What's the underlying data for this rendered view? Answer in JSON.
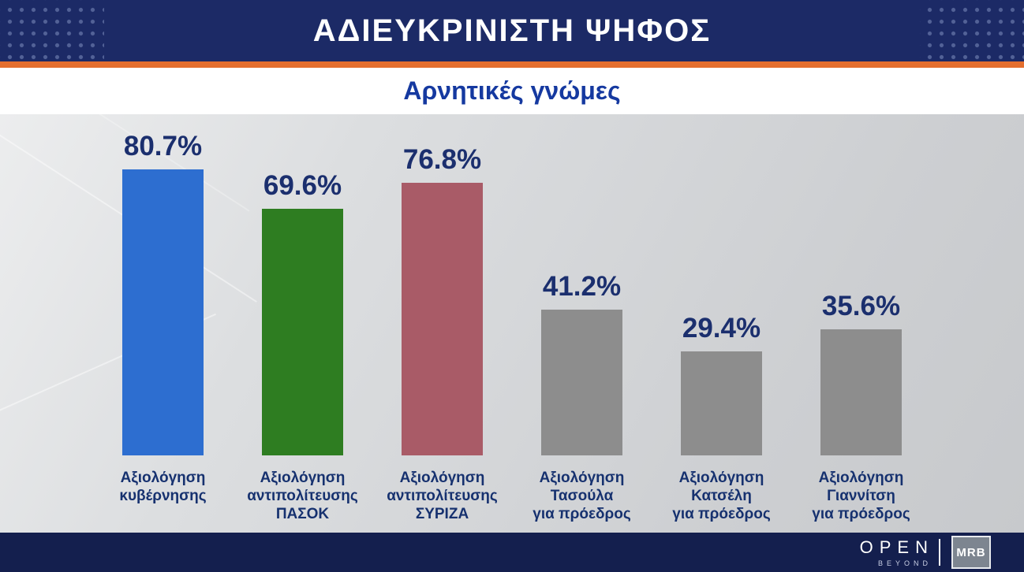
{
  "header": {
    "title": "ΑΔΙΕΥΚΡΙΝΙΣΤΗ ΨΗΦΟΣ"
  },
  "subtitle": "Αρνητικές γνώμες",
  "chart_data": {
    "type": "bar",
    "title": "ΑΔΙΕΥΚΡΙΝΙΣΤΗ ΨΗΦΟΣ",
    "subtitle": "Αρνητικές γνώμες",
    "unit": "%",
    "ylim": [
      0,
      100
    ],
    "grid": false,
    "legend": false,
    "categories": [
      "Αξιολόγηση\nκυβέρνησης",
      "Αξιολόγηση\nαντιπολίτευσης\nΠΑΣΟΚ",
      "Αξιολόγηση\nαντιπολίτευσης\nΣΥΡΙΖΑ",
      "Αξιολόγηση\nΤασούλα\nγια πρόεδρος",
      "Αξιολόγηση\nΚατσέλη\nγια πρόεδρος",
      "Αξιολόγηση\nΓιαννίτση\nγια πρόεδρος"
    ],
    "values": [
      80.7,
      69.6,
      76.8,
      41.2,
      29.4,
      35.6
    ],
    "value_labels": [
      "80.7%",
      "69.6%",
      "76.8%",
      "41.2%",
      "29.4%",
      "35.6%"
    ],
    "bar_colors": [
      "#2d6ed0",
      "#2e7d21",
      "#a95b67",
      "#8d8d8d",
      "#8d8d8d",
      "#8d8d8d"
    ]
  },
  "footer": {
    "open_label": "OPEN",
    "open_sublabel": "BEYOND",
    "mrb_label": "MRB"
  },
  "colors": {
    "header_bg": "#1c2a66",
    "accent_orange": "#e46e2e",
    "title_text": "#ffffff",
    "subtitle_text": "#1539a0",
    "value_text": "#1b2f6e",
    "category_text": "#16316f",
    "footer_bg": "#141f4e",
    "chart_bg": "#d5d7d9"
  }
}
